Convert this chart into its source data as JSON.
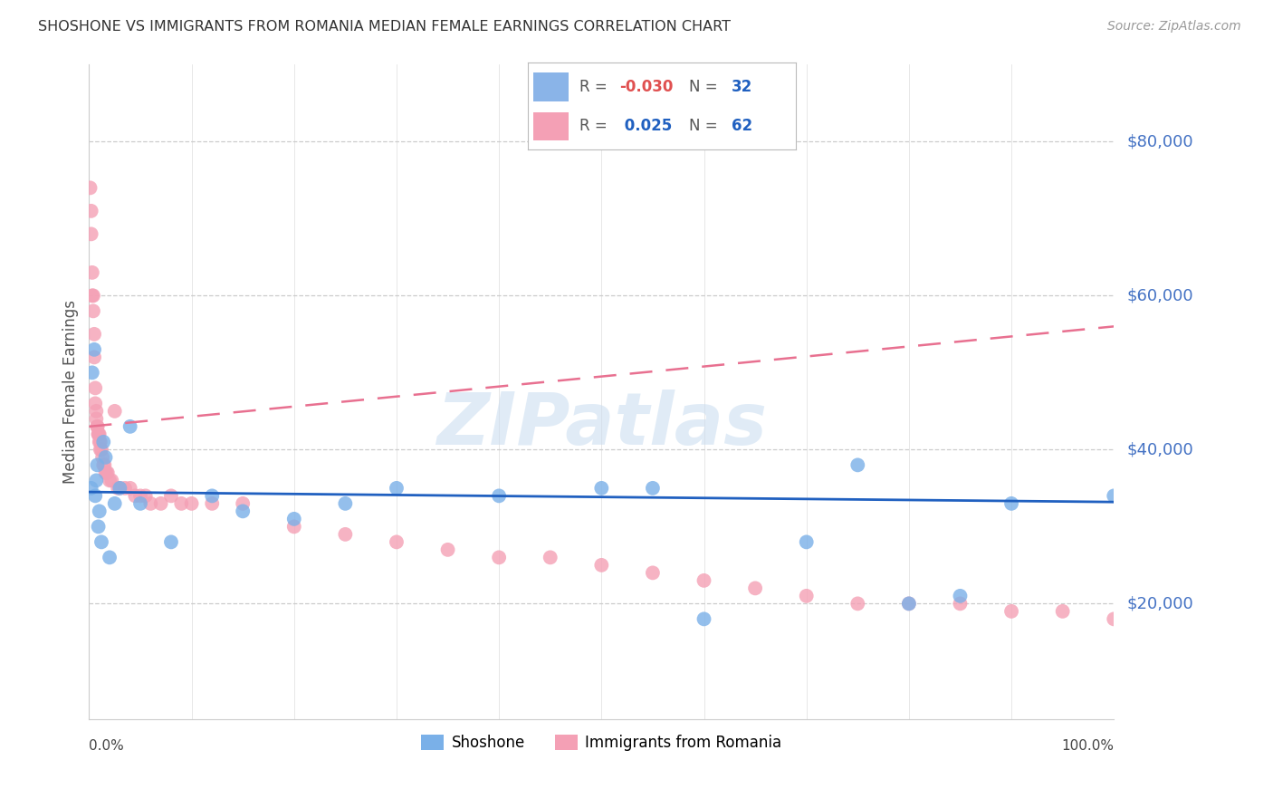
{
  "title": "SHOSHONE VS IMMIGRANTS FROM ROMANIA MEDIAN FEMALE EARNINGS CORRELATION CHART",
  "source": "Source: ZipAtlas.com",
  "ylabel": "Median Female Earnings",
  "ytick_labels": [
    "$20,000",
    "$40,000",
    "$60,000",
    "$80,000"
  ],
  "ytick_values": [
    20000,
    40000,
    60000,
    80000
  ],
  "ylim": [
    5000,
    90000
  ],
  "xlim": [
    0.0,
    1.0
  ],
  "watermark": "ZIPatlas",
  "shoshone_color": "#7ab0e8",
  "romania_color": "#f4a0b5",
  "shoshone_line_color": "#2060c0",
  "romania_line_color": "#e87090",
  "background_color": "#ffffff",
  "grid_color": "#cccccc",
  "shoshone_x": [
    0.002,
    0.003,
    0.005,
    0.006,
    0.007,
    0.008,
    0.009,
    0.01,
    0.012,
    0.014,
    0.016,
    0.02,
    0.025,
    0.03,
    0.04,
    0.05,
    0.08,
    0.12,
    0.15,
    0.2,
    0.25,
    0.3,
    0.4,
    0.5,
    0.55,
    0.6,
    0.7,
    0.75,
    0.8,
    0.85,
    0.9,
    1.0
  ],
  "shoshone_y": [
    35000,
    50000,
    53000,
    34000,
    36000,
    38000,
    30000,
    32000,
    28000,
    41000,
    39000,
    26000,
    33000,
    35000,
    43000,
    33000,
    28000,
    34000,
    32000,
    31000,
    33000,
    35000,
    34000,
    35000,
    35000,
    18000,
    28000,
    38000,
    20000,
    21000,
    33000,
    34000
  ],
  "romania_x": [
    0.001,
    0.002,
    0.002,
    0.003,
    0.003,
    0.004,
    0.004,
    0.005,
    0.005,
    0.006,
    0.006,
    0.007,
    0.007,
    0.008,
    0.008,
    0.009,
    0.009,
    0.01,
    0.01,
    0.011,
    0.011,
    0.012,
    0.013,
    0.014,
    0.015,
    0.016,
    0.017,
    0.018,
    0.02,
    0.022,
    0.025,
    0.028,
    0.03,
    0.035,
    0.04,
    0.045,
    0.05,
    0.055,
    0.06,
    0.07,
    0.08,
    0.09,
    0.1,
    0.12,
    0.15,
    0.2,
    0.25,
    0.3,
    0.35,
    0.4,
    0.45,
    0.5,
    0.55,
    0.6,
    0.65,
    0.7,
    0.75,
    0.8,
    0.85,
    0.9,
    0.95,
    1.0
  ],
  "romania_y": [
    74000,
    71000,
    68000,
    63000,
    60000,
    60000,
    58000,
    55000,
    52000,
    48000,
    46000,
    45000,
    44000,
    43000,
    43000,
    42000,
    42000,
    42000,
    41000,
    41000,
    40000,
    40000,
    39000,
    38000,
    38000,
    37000,
    37000,
    37000,
    36000,
    36000,
    45000,
    35000,
    35000,
    35000,
    35000,
    34000,
    34000,
    34000,
    33000,
    33000,
    34000,
    33000,
    33000,
    33000,
    33000,
    30000,
    29000,
    28000,
    27000,
    26000,
    26000,
    25000,
    24000,
    23000,
    22000,
    21000,
    20000,
    20000,
    20000,
    19000,
    19000,
    18000
  ],
  "shoshone_trend_y": [
    34500,
    33200
  ],
  "romania_trend_y": [
    43000,
    56000
  ],
  "legend_label1": "Shoshone",
  "legend_label2": "Immigrants from Romania"
}
